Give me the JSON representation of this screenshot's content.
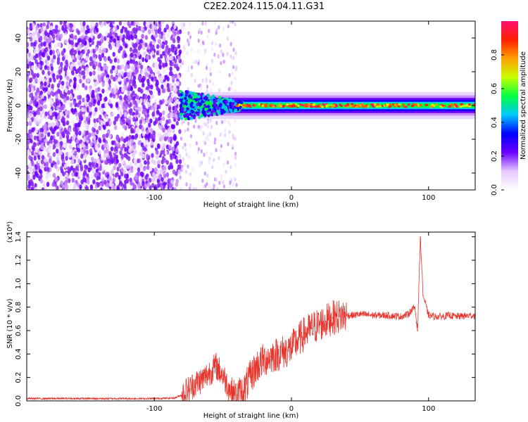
{
  "title": "C2E2.2024.115.04.11.G31",
  "chart_data": [
    {
      "type": "heatmap",
      "title": "C2E2.2024.115.04.11.G31",
      "xlabel": "Height of straight line (km)",
      "ylabel": "Frequency (Hz)",
      "xlim": [
        -193,
        134
      ],
      "ylim": [
        -50,
        50
      ],
      "x_ticks": [
        -100,
        0,
        100
      ],
      "y_ticks": [
        -40,
        -20,
        0,
        20,
        40
      ],
      "colorbar": {
        "label": "Normalized spectral amplitude",
        "range": [
          0,
          1
        ],
        "ticks": [
          "0.0",
          "0.2",
          "0.4",
          "0.6",
          "0.8"
        ],
        "colors": [
          "#ffffff",
          "#e4c8ff",
          "#6a00ff",
          "#0000ff",
          "#00c8ff",
          "#00ff40",
          "#c8ff00",
          "#ffa000",
          "#ff2000",
          "#ff1070"
        ]
      },
      "features": [
        {
          "name": "broadband noise region",
          "x_range": [
            -193,
            -81
          ],
          "freq_range": [
            -50,
            50
          ],
          "amplitude": 0.3
        },
        {
          "name": "sparse noise band",
          "x_range": [
            -81,
            -40
          ],
          "freq_range": [
            -50,
            50
          ],
          "amplitude": 0.12
        },
        {
          "name": "narrowband signal",
          "x_range": [
            -81,
            134
          ],
          "center_freq": 0,
          "peak_amplitude": 1.0
        }
      ]
    },
    {
      "type": "line",
      "xlabel": "Height of straight line (km)",
      "ylabel": "SNR (10 * v/v)",
      "scale_label": "(x10⁴)",
      "xlim": [
        -193,
        134
      ],
      "ylim": [
        0,
        1.44
      ],
      "x_ticks": [
        -100,
        0,
        100
      ],
      "y_ticks": [
        "0.0",
        "0.2",
        "0.4",
        "0.6",
        "0.8",
        "1.0",
        "1.2",
        "1.4"
      ],
      "series_color": "#e8342c",
      "x": [
        -193,
        -150,
        -100,
        -85,
        -80,
        -75,
        -70,
        -65,
        -60,
        -55,
        -50,
        -45,
        -40,
        -35,
        -30,
        -25,
        -20,
        -15,
        -10,
        -5,
        0,
        5,
        10,
        15,
        20,
        25,
        30,
        35,
        40,
        45,
        50,
        60,
        70,
        80,
        85,
        90,
        92,
        94,
        96,
        100,
        105,
        110,
        115,
        120,
        134
      ],
      "y": [
        0.02,
        0.02,
        0.02,
        0.025,
        0.05,
        0.1,
        0.15,
        0.18,
        0.24,
        0.3,
        0.22,
        0.1,
        0.05,
        0.08,
        0.2,
        0.3,
        0.35,
        0.38,
        0.4,
        0.42,
        0.45,
        0.52,
        0.58,
        0.62,
        0.65,
        0.68,
        0.71,
        0.72,
        0.73,
        0.73,
        0.74,
        0.73,
        0.73,
        0.72,
        0.74,
        0.8,
        0.6,
        1.4,
        0.9,
        0.73,
        0.72,
        0.72,
        0.73,
        0.72,
        0.73
      ]
    }
  ]
}
